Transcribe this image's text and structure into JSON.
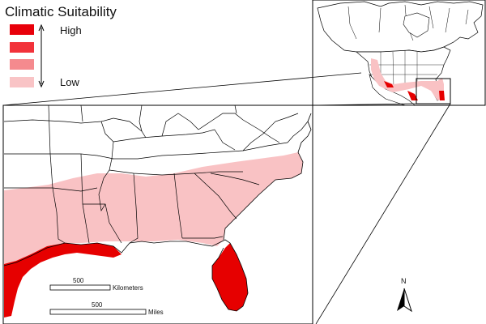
{
  "legend": {
    "title": "Climatic Suitability",
    "high_label": "High",
    "low_label": "Low",
    "classes": [
      {
        "name": "class-1",
        "color": "#e8000a"
      },
      {
        "name": "class-2",
        "color": "#f2323a"
      },
      {
        "name": "class-3",
        "color": "#f58a8e"
      },
      {
        "name": "class-4",
        "color": "#f9c4c6"
      }
    ]
  },
  "scalebar_km": {
    "value": "500",
    "unit": "Kilometers"
  },
  "scalebar_mi": {
    "value": "500",
    "unit": "Miles"
  },
  "north_arrow": {
    "label": "N"
  },
  "colors": {
    "high": "#e60000",
    "low": "#f9c2c4",
    "border": "#000000",
    "water": "#ffffff"
  }
}
